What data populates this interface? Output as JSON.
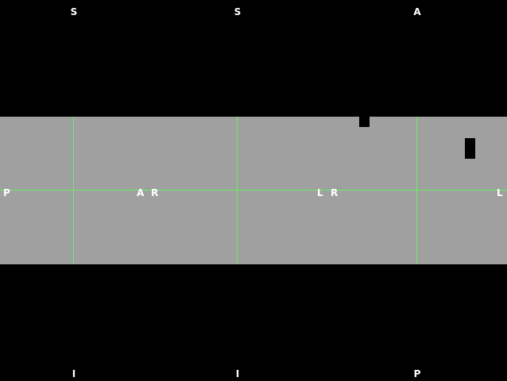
{
  "colors": {
    "background": "#000000",
    "slice": "#a0a0a0",
    "crosshair": "#66ee66",
    "label": "#ffffff"
  },
  "orientation_labels": {
    "top": [
      "S",
      "S",
      "A"
    ],
    "bottom": [
      "I",
      "I",
      "P"
    ],
    "edge_left": "P",
    "pair_a": [
      "A",
      "R"
    ],
    "pair_b": [
      "L",
      "R"
    ],
    "edge_right": "L"
  }
}
